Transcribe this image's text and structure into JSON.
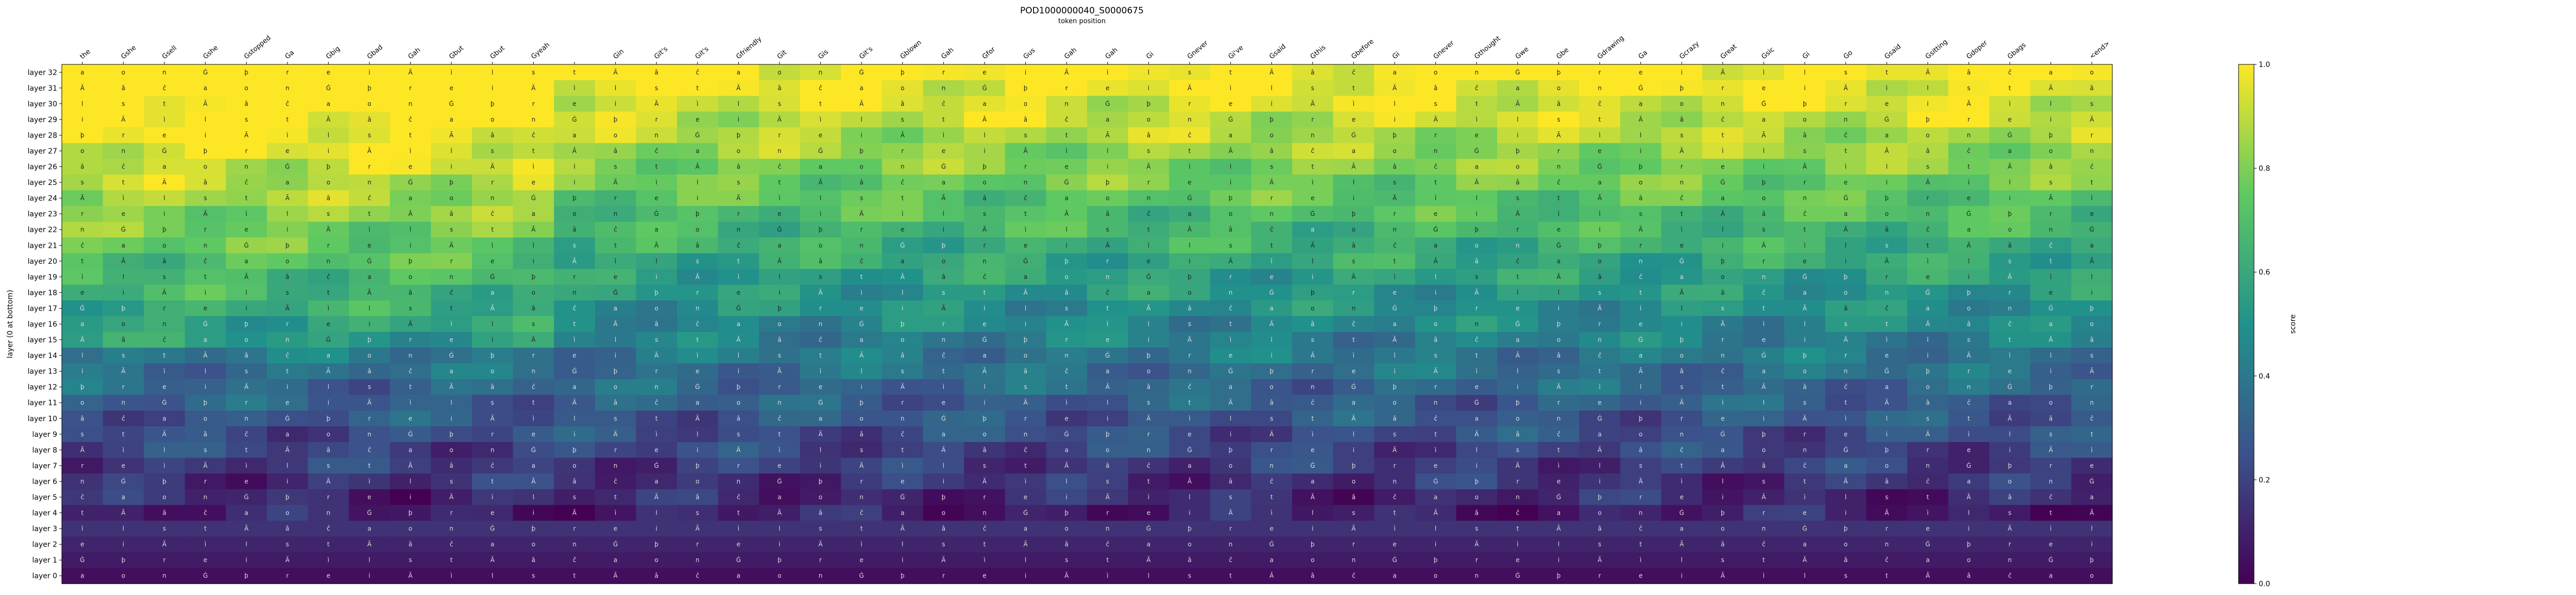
{
  "chart_data": {
    "type": "heatmap",
    "title": "POD1000000040_S0000675",
    "subtitle": "token position",
    "ylabel": "layer (0 at bottom)",
    "colorbar_label": "score",
    "colorbar_range": [
      0.0,
      1.0
    ],
    "colorbar_ticks": [
      "0.0",
      "0.2",
      "0.4",
      "0.6",
      "0.8",
      "1.0"
    ],
    "colormap": "viridis",
    "colormap_colors": [
      "#440154",
      "#3b528b",
      "#21918c",
      "#5ec962",
      "#fde725"
    ],
    "x_tokens": [
      "the",
      "Gshe",
      "Gsell",
      "Gshe",
      "Gstopped",
      "Ga",
      "Gbig",
      "Gbad",
      "Gah",
      "Gbut",
      "Gbut",
      "Gyeah",
      "",
      "Gin",
      "Git's",
      "Git's",
      "Gfriendly",
      "Git",
      "Gis",
      "Git's",
      "Gblown",
      "Gah",
      "Gfor",
      "Gus",
      "Gah",
      "Gah",
      "Gi",
      "Gnever",
      "Gi've",
      "Gsaid",
      "Gthis",
      "Gbefore",
      "Gi",
      "Gnever",
      "Gthought",
      "Gwe",
      "Gbe",
      "Gdrawing",
      "Ga",
      "Gcrazy",
      "Great",
      "Gsic",
      "Gi",
      "Go",
      "Gsaid",
      "Gsitting",
      "Gdoper",
      "Gbags",
      "",
      "<end>"
    ],
    "y_labels": [
      "layer 32",
      "layer 31",
      "layer 30",
      "layer 29",
      "layer 28",
      "layer 27",
      "layer 26",
      "layer 25",
      "layer 24",
      "layer 23",
      "layer 22",
      "layer 21",
      "layer 20",
      "layer 19",
      "layer 18",
      "layer 17",
      "layer 16",
      "layer 15",
      "layer 14",
      "layer 13",
      "layer 12",
      "layer 11",
      "layer 10",
      "layer 9",
      "layer 8",
      "layer 7",
      "layer 6",
      "layer 5",
      "layer 4",
      "layer 3",
      "layer 2",
      "layer 1",
      "layer 0"
    ],
    "cell_glyphs": [
      "a",
      "s",
      "e",
      "o",
      "t",
      "i",
      "n",
      "Ã",
      "Ä",
      "Ġ",
      "â",
      "ì",
      "þ",
      "ĉ",
      "l",
      "r"
    ],
    "values": []
  }
}
